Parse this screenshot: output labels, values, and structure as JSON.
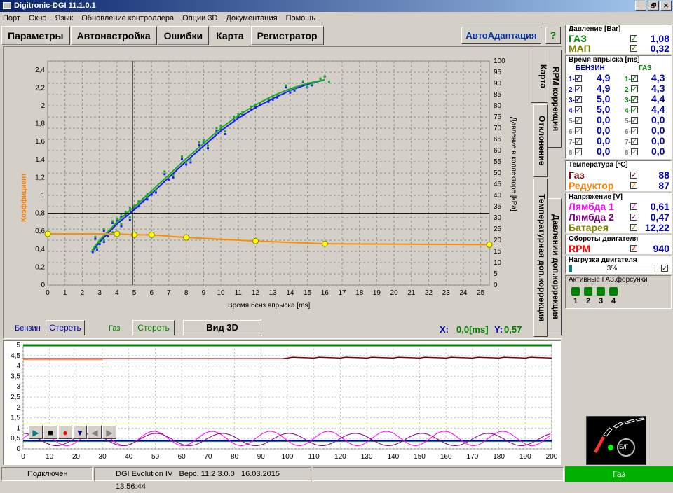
{
  "window": {
    "title": "Digitronic-DGI  11.1.0.1",
    "buttons": [
      "_",
      "🗗",
      "✕"
    ]
  },
  "menu": [
    "Порт",
    "Окно",
    "Язык",
    "Обновление контроллера",
    "Опции 3D",
    "Документация",
    "Помощь"
  ],
  "tabs": [
    "Параметры",
    "Автонастройка",
    "Ошибки",
    "Карта",
    "Регистратор"
  ],
  "active_tab": "Карта",
  "autoadapt_label": "АвтоАдаптация",
  "help_icon": "?",
  "side_tabs": [
    "Карта",
    "RPM коррекция",
    "Отклонение",
    "Температурная доп.коррекция",
    "Давлении доп.коррекция"
  ],
  "map_chart": {
    "ylabel_left": "Коэффициент",
    "ylabel_right": "Давление в коллекторе [kPa]",
    "xlabel": "Время бенз.впрыска [ms]",
    "yticks_left": [
      "0",
      "0,2",
      "0,4",
      "0,6",
      "0,8",
      "1",
      "1,2",
      "1,4",
      "1,6",
      "1,8",
      "2",
      "2,2",
      "2,4"
    ],
    "yticks_right": [
      "0",
      "5",
      "10",
      "15",
      "20",
      "25",
      "30",
      "35",
      "40",
      "45",
      "50",
      "55",
      "60",
      "65",
      "70",
      "75",
      "80",
      "85",
      "90",
      "95",
      "100"
    ],
    "xticks": [
      "0",
      "1",
      "2",
      "3",
      "4",
      "5",
      "6",
      "7",
      "8",
      "9",
      "10",
      "11",
      "12",
      "13",
      "14",
      "15",
      "16",
      "17",
      "18",
      "19",
      "20",
      "21",
      "22",
      "23",
      "24",
      "25"
    ]
  },
  "chart_data": [
    {
      "type": "line",
      "xlabel": "Время бенз.впрыска [ms]",
      "ylabel": "Коэффициент",
      "xlim": [
        0,
        25.5
      ],
      "ylim": [
        0,
        2.5
      ],
      "series": [
        {
          "name": "Бензин",
          "color": "#1a1aff",
          "x": [
            2.6,
            3,
            3.5,
            4,
            4.5,
            5,
            5.5,
            6,
            7,
            8,
            9,
            10,
            11,
            12,
            13,
            14,
            15,
            16
          ],
          "y": [
            0.38,
            0.48,
            0.58,
            0.68,
            0.76,
            0.84,
            0.93,
            1.02,
            1.2,
            1.38,
            1.55,
            1.72,
            1.86,
            1.98,
            2.08,
            2.17,
            2.24,
            2.29
          ]
        },
        {
          "name": "Газ",
          "color": "#22aa22",
          "x": [
            2.6,
            3,
            3.5,
            4,
            4.5,
            5,
            5.5,
            6,
            7,
            8,
            9,
            10,
            11,
            12,
            13,
            14,
            15,
            16
          ],
          "y": [
            0.4,
            0.5,
            0.6,
            0.7,
            0.79,
            0.87,
            0.96,
            1.05,
            1.23,
            1.41,
            1.58,
            1.75,
            1.89,
            2.01,
            2.11,
            2.19,
            2.25,
            2.29
          ]
        },
        {
          "name": "Коэффициент",
          "color": "#ff8c00",
          "x": [
            0,
            4,
            5,
            6,
            8,
            12,
            16,
            25.5
          ],
          "y": [
            0.57,
            0.57,
            0.56,
            0.56,
            0.53,
            0.49,
            0.46,
            0.45
          ]
        }
      ],
      "markers": {
        "x": [
          0,
          4,
          5,
          6,
          8,
          12,
          16,
          25.5
        ],
        "y": [
          0.57,
          0.57,
          0.56,
          0.56,
          0.53,
          0.49,
          0.46,
          0.45
        ],
        "color": "#ffff00"
      },
      "cursor": {
        "x": 4.9,
        "y": 0.8
      }
    },
    {
      "type": "line",
      "xlim": [
        0,
        200
      ],
      "ylim": [
        0,
        5
      ],
      "xticks": [
        "0",
        "10",
        "20",
        "30",
        "40",
        "50",
        "60",
        "70",
        "80",
        "90",
        "100",
        "110",
        "120",
        "130",
        "140",
        "150",
        "160",
        "170",
        "180",
        "190",
        "200"
      ],
      "yticks": [
        "0",
        "0,5",
        "1",
        "1,5",
        "2",
        "2,5",
        "3",
        "3,5",
        "4",
        "4,5",
        "5"
      ]
    }
  ],
  "controls": {
    "benzin_label": "Бензин",
    "clear1": "Стереть",
    "gaz_label": "Газ",
    "clear2": "Стереть",
    "view3d": "Вид 3D",
    "x_label": "X:",
    "x_val": "0,0[ms]",
    "y_label": "Y:",
    "y_val": "0,57"
  },
  "pressure": {
    "title": "Давление [Bar]",
    "rows": [
      {
        "name": "ГАЗ",
        "value": "1,08",
        "color": "#008000"
      },
      {
        "name": "МАП",
        "value": "0,32",
        "color": "#808000"
      }
    ]
  },
  "injection": {
    "title": "Время впрыска [ms]",
    "col1": "БЕНЗИН",
    "col2": "ГАЗ",
    "benzin": [
      {
        "n": "1",
        "v": "4,9"
      },
      {
        "n": "2",
        "v": "4,9"
      },
      {
        "n": "3",
        "v": "5,0"
      },
      {
        "n": "4",
        "v": "5,0"
      },
      {
        "n": "5",
        "v": "0,0"
      },
      {
        "n": "6",
        "v": "0,0"
      },
      {
        "n": "7",
        "v": "0,0"
      },
      {
        "n": "8",
        "v": "0,0"
      }
    ],
    "gaz": [
      {
        "n": "1",
        "v": "4,3"
      },
      {
        "n": "2",
        "v": "4,3"
      },
      {
        "n": "3",
        "v": "4,4"
      },
      {
        "n": "4",
        "v": "4,4"
      },
      {
        "n": "5",
        "v": "0,0"
      },
      {
        "n": "6",
        "v": "0,0"
      },
      {
        "n": "7",
        "v": "0,0"
      },
      {
        "n": "8",
        "v": "0,0"
      }
    ]
  },
  "temperature": {
    "title": "Температура [°C]",
    "rows": [
      {
        "name": "Газ",
        "value": "88",
        "color": "#800000"
      },
      {
        "name": "Редуктор",
        "value": "87",
        "color": "#ff8000"
      }
    ]
  },
  "voltage": {
    "title": "Напряжение [V]",
    "rows": [
      {
        "name": "Лямбда 1",
        "value": "0,61",
        "color": "#ff00ff"
      },
      {
        "name": "Лямбда 2",
        "value": "0,47",
        "color": "#800080"
      },
      {
        "name": "Батарея",
        "value": "12,22",
        "color": "#808000"
      }
    ]
  },
  "rpm": {
    "title": "Обороты двигателя",
    "name": "RPM",
    "value": "940"
  },
  "load": {
    "title": "Нагрузка двигателя",
    "value": "3%",
    "fraction": 0.03
  },
  "gas_inj": {
    "title": "Активные ГАЗ.форсунки",
    "items": [
      "1",
      "2",
      "3",
      "4"
    ]
  },
  "gauge_label": "Б/Г",
  "status": {
    "connected": "Подключен",
    "device": "DGI Evolution IV",
    "version": "Верс. 11.2  3.0.0",
    "datetime": "16.03.2015 13:56:44",
    "fuel": "Газ"
  }
}
